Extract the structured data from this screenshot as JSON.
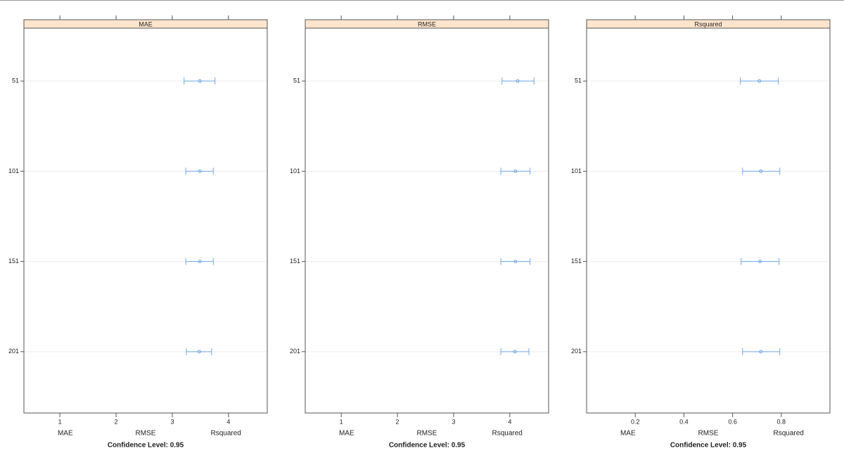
{
  "chart_data": [
    {
      "type": "dotplot",
      "strip": "MAE",
      "categories": [
        "51",
        "101",
        "151",
        "201"
      ],
      "values": [
        3.49,
        3.49,
        3.49,
        3.48
      ],
      "lower": [
        3.21,
        3.24,
        3.24,
        3.25
      ],
      "upper": [
        3.76,
        3.73,
        3.73,
        3.7
      ],
      "color": "#6fa8e6",
      "xlim": [
        0.36,
        4.69
      ],
      "xticks": [
        1,
        2,
        3,
        4
      ],
      "grid": true,
      "xlabel": [
        "MAE",
        "RMSE",
        "Rsquared"
      ],
      "caption": "Confidence Level: 0.95"
    },
    {
      "type": "dotplot",
      "strip": "RMSE",
      "categories": [
        "51",
        "101",
        "151",
        "201"
      ],
      "values": [
        4.14,
        4.1,
        4.1,
        4.09
      ],
      "lower": [
        3.86,
        3.84,
        3.84,
        3.84
      ],
      "upper": [
        4.43,
        4.36,
        4.36,
        4.34
      ],
      "color": "#6fa8e6",
      "xlim": [
        0.36,
        4.69
      ],
      "xticks": [
        1,
        2,
        3,
        4
      ],
      "grid": true,
      "xlabel": [
        "MAE",
        "RMSE",
        "Rsquared"
      ],
      "caption": "Confidence Level: 0.95"
    },
    {
      "type": "dotplot",
      "strip": "Rsquared",
      "categories": [
        "51",
        "101",
        "151",
        "201"
      ],
      "values": [
        0.71,
        0.716,
        0.713,
        0.716
      ],
      "lower": [
        0.632,
        0.641,
        0.635,
        0.641
      ],
      "upper": [
        0.788,
        0.794,
        0.791,
        0.794
      ],
      "color": "#6fa8e6",
      "xlim": [
        0,
        1
      ],
      "xticks": [
        0.2,
        0.4,
        0.6,
        0.8
      ],
      "grid": true,
      "xlabel": [
        "MAE",
        "RMSE",
        "Rsquared"
      ],
      "caption": "Confidence Level: 0.95"
    }
  ]
}
